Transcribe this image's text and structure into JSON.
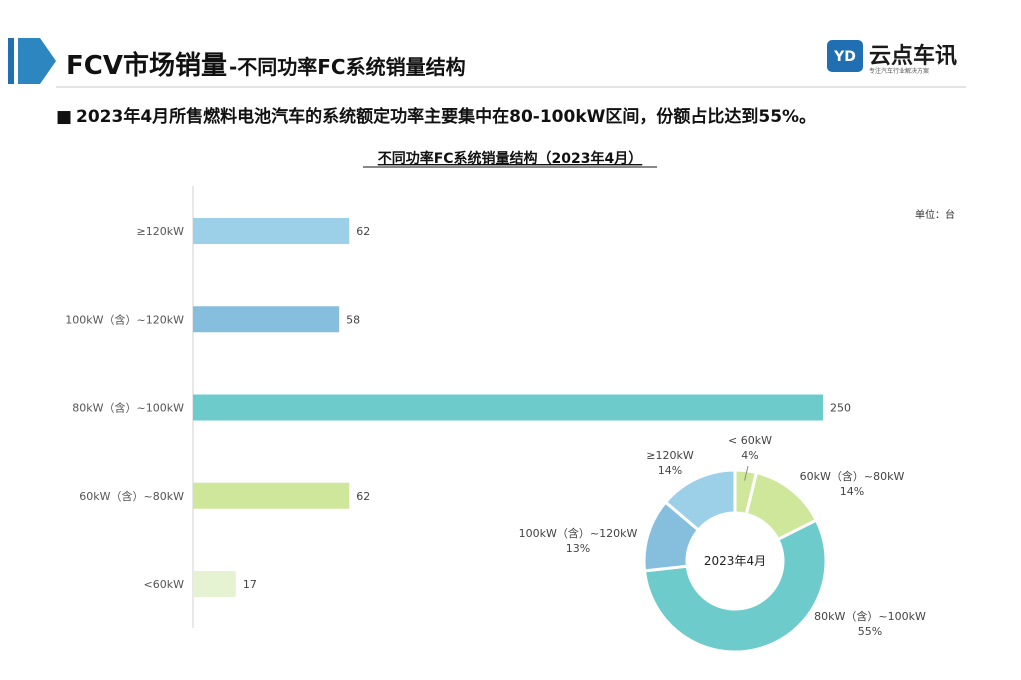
{
  "header": {
    "title_main": "FCV市场销量",
    "title_sub": "-不同功率FC系统销量结构",
    "accent_color": "#2e86c1"
  },
  "logo": {
    "mark": "YD",
    "name": "云点车讯",
    "tagline": "专注汽车行业解决方案",
    "color": "#1f6fb2"
  },
  "bullet": {
    "marker": "■",
    "text": "2023年4月所售燃料电池汽车的系统额定功率主要集中在80-100kW区间，份额占比达到55%。"
  },
  "chart_data": [
    {
      "type": "bar",
      "orientation": "horizontal",
      "title": "不同功率FC系统销量结构（2023年4月）",
      "unit_label": "单位：台",
      "categories": [
        "≥120kW",
        "100kW（含）~120kW",
        "80kW（含）~100kW",
        "60kW（含）~80kW",
        "<60kW"
      ],
      "values": [
        62,
        58,
        250,
        62,
        17
      ],
      "colors": [
        "#9ccfe8",
        "#86bfde",
        "#6ecbcc",
        "#cfe79a",
        "#e6f3d3"
      ],
      "xlim": [
        0,
        250
      ],
      "grid": false
    },
    {
      "type": "pie",
      "variant": "donut",
      "center_label": "2023年4月",
      "slices": [
        {
          "label": "< 60kW",
          "percent_label": "4%",
          "value": 17,
          "color": "#cfe79a"
        },
        {
          "label": "60kW（含）~80kW",
          "percent_label": "14%",
          "value": 62,
          "color": "#cfe79a"
        },
        {
          "label": "80kW（含）~100kW",
          "percent_label": "55%",
          "value": 250,
          "color": "#6ecbcc"
        },
        {
          "label": "100kW（含）~120kW",
          "percent_label": "13%",
          "value": 58,
          "color": "#86bfde"
        },
        {
          "label": "≥120kW",
          "percent_label": "14%",
          "value": 62,
          "color": "#9ccfe8"
        }
      ]
    }
  ]
}
